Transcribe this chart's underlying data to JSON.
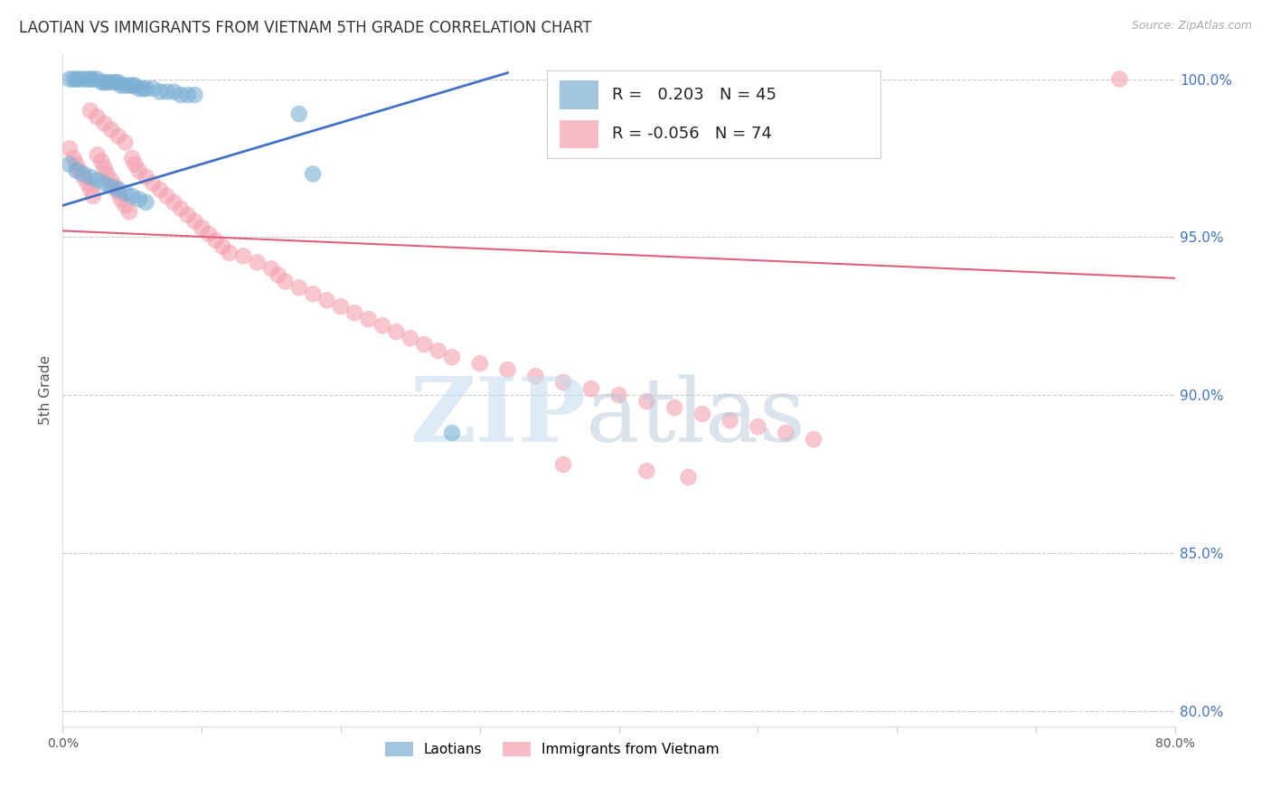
{
  "title": "LAOTIAN VS IMMIGRANTS FROM VIETNAM 5TH GRADE CORRELATION CHART",
  "source": "Source: ZipAtlas.com",
  "ylabel": "5th Grade",
  "xlim": [
    0.0,
    0.8
  ],
  "ylim": [
    0.795,
    1.008
  ],
  "xticks": [
    0.0,
    0.1,
    0.2,
    0.3,
    0.4,
    0.5,
    0.6,
    0.7,
    0.8
  ],
  "xticklabels": [
    "0.0%",
    "",
    "",
    "",
    "",
    "",
    "",
    "",
    "80.0%"
  ],
  "yticks_right": [
    1.0,
    0.95,
    0.9,
    0.85,
    0.8
  ],
  "ytick_labels_right": [
    "100.0%",
    "95.0%",
    "90.0%",
    "85.0%",
    "80.0%"
  ],
  "grid_color": "#cccccc",
  "background_color": "#ffffff",
  "blue_color": "#7bafd4",
  "pink_color": "#f4a0b0",
  "blue_line_color": "#4472c4",
  "pink_line_color": "#e06080",
  "legend_R_blue": "0.203",
  "legend_N_blue": "45",
  "legend_R_pink": "-0.056",
  "legend_N_pink": "74",
  "blue_scatter_x": [
    0.005,
    0.008,
    0.01,
    0.012,
    0.015,
    0.018,
    0.02,
    0.022,
    0.025,
    0.028,
    0.03,
    0.032,
    0.035,
    0.038,
    0.04,
    0.042,
    0.045,
    0.048,
    0.05,
    0.052,
    0.055,
    0.058,
    0.06,
    0.065,
    0.07,
    0.075,
    0.08,
    0.085,
    0.09,
    0.095,
    0.005,
    0.01,
    0.015,
    0.02,
    0.025,
    0.03,
    0.035,
    0.04,
    0.045,
    0.05,
    0.055,
    0.06,
    0.17,
    0.18,
    0.28
  ],
  "blue_scatter_y": [
    1.0,
    1.0,
    1.0,
    1.0,
    1.0,
    1.0,
    1.0,
    1.0,
    1.0,
    0.999,
    0.999,
    0.999,
    0.999,
    0.999,
    0.999,
    0.998,
    0.998,
    0.998,
    0.998,
    0.998,
    0.997,
    0.997,
    0.997,
    0.997,
    0.996,
    0.996,
    0.996,
    0.995,
    0.995,
    0.995,
    0.973,
    0.971,
    0.97,
    0.969,
    0.968,
    0.967,
    0.966,
    0.965,
    0.964,
    0.963,
    0.962,
    0.961,
    0.989,
    0.97,
    0.888
  ],
  "pink_scatter_x": [
    0.005,
    0.008,
    0.01,
    0.012,
    0.015,
    0.018,
    0.02,
    0.022,
    0.025,
    0.028,
    0.03,
    0.032,
    0.035,
    0.038,
    0.04,
    0.042,
    0.045,
    0.048,
    0.05,
    0.052,
    0.055,
    0.06,
    0.065,
    0.07,
    0.075,
    0.08,
    0.085,
    0.09,
    0.095,
    0.1,
    0.105,
    0.11,
    0.115,
    0.12,
    0.13,
    0.14,
    0.15,
    0.155,
    0.16,
    0.17,
    0.18,
    0.19,
    0.2,
    0.21,
    0.22,
    0.23,
    0.24,
    0.25,
    0.26,
    0.27,
    0.28,
    0.3,
    0.32,
    0.34,
    0.36,
    0.38,
    0.4,
    0.42,
    0.44,
    0.46,
    0.48,
    0.5,
    0.52,
    0.54,
    0.02,
    0.025,
    0.03,
    0.035,
    0.04,
    0.045,
    0.36,
    0.42,
    0.45,
    0.76
  ],
  "pink_scatter_y": [
    0.978,
    0.975,
    0.973,
    0.971,
    0.969,
    0.967,
    0.965,
    0.963,
    0.976,
    0.974,
    0.972,
    0.97,
    0.968,
    0.966,
    0.964,
    0.962,
    0.96,
    0.958,
    0.975,
    0.973,
    0.971,
    0.969,
    0.967,
    0.965,
    0.963,
    0.961,
    0.959,
    0.957,
    0.955,
    0.953,
    0.951,
    0.949,
    0.947,
    0.945,
    0.944,
    0.942,
    0.94,
    0.938,
    0.936,
    0.934,
    0.932,
    0.93,
    0.928,
    0.926,
    0.924,
    0.922,
    0.92,
    0.918,
    0.916,
    0.914,
    0.912,
    0.91,
    0.908,
    0.906,
    0.904,
    0.902,
    0.9,
    0.898,
    0.896,
    0.894,
    0.892,
    0.89,
    0.888,
    0.886,
    0.99,
    0.988,
    0.986,
    0.984,
    0.982,
    0.98,
    0.878,
    0.876,
    0.874,
    1.0
  ],
  "blue_line_x": [
    0.0,
    0.32
  ],
  "blue_line_y": [
    0.96,
    1.002
  ],
  "pink_line_x": [
    0.0,
    0.8
  ],
  "pink_line_y": [
    0.952,
    0.937
  ]
}
